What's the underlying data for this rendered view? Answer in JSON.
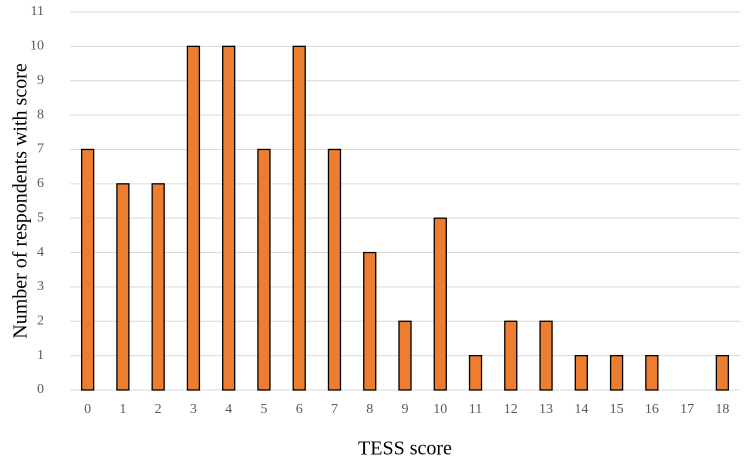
{
  "chart_data": {
    "type": "bar",
    "x_label": "TESS score",
    "y_label": "Number of respondents with score",
    "categories": [
      "0",
      "1",
      "2",
      "3",
      "4",
      "5",
      "6",
      "7",
      "8",
      "9",
      "10",
      "11",
      "12",
      "13",
      "14",
      "15",
      "16",
      "17",
      "18"
    ],
    "values": [
      7,
      6,
      6,
      10,
      10,
      7,
      10,
      7,
      4,
      2,
      5,
      1,
      2,
      2,
      1,
      1,
      1,
      0,
      1
    ],
    "color": "#ed7d31",
    "ylim": [
      0,
      11
    ],
    "yticks": [
      0,
      1,
      2,
      3,
      4,
      5,
      6,
      7,
      8,
      9,
      10,
      11
    ],
    "grid": true
  }
}
